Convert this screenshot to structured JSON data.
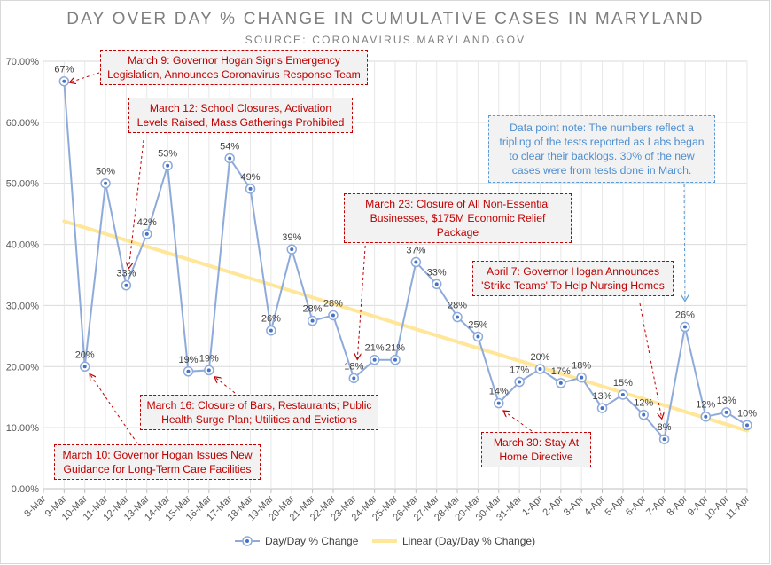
{
  "chart_data": {
    "type": "line",
    "title": "DAY OVER DAY % CHANGE IN CUMULATIVE CASES IN MARYLAND",
    "subtitle": "SOURCE: CORONAVIRUS.MARYLAND.GOV",
    "categories": [
      "8-Mar",
      "9-Mar",
      "10-Mar",
      "11-Mar",
      "12-Mar",
      "13-Mar",
      "14-Mar",
      "15-Mar",
      "16-Mar",
      "17-Mar",
      "18-Mar",
      "19-Mar",
      "20-Mar",
      "21-Mar",
      "22-Mar",
      "23-Mar",
      "24-Mar",
      "25-Mar",
      "26-Mar",
      "27-Mar",
      "28-Mar",
      "29-Mar",
      "30-Mar",
      "31-Mar",
      "1-Apr",
      "2-Apr",
      "3-Apr",
      "4-Apr",
      "5-Apr",
      "6-Apr",
      "7-Apr",
      "8-Apr",
      "9-Apr",
      "10-Apr",
      "11-Apr"
    ],
    "series": [
      {
        "name": "Day/Day % Change",
        "values": [
          null,
          0.667,
          0.2,
          0.5,
          0.333,
          0.417,
          0.529,
          0.192,
          0.194,
          0.541,
          0.491,
          0.259,
          0.392,
          0.275,
          0.284,
          0.181,
          0.211,
          0.211,
          0.371,
          0.335,
          0.281,
          0.249,
          0.14,
          0.175,
          0.196,
          0.173,
          0.182,
          0.132,
          0.154,
          0.121,
          0.081,
          0.265,
          0.118,
          0.125,
          0.104
        ],
        "labels": [
          "",
          "67%",
          "20%",
          "50%",
          "33%",
          "42%",
          "53%",
          "19%",
          "19%",
          "54%",
          "49%",
          "26%",
          "39%",
          "28%",
          "28%",
          "18%",
          "21%",
          "21%",
          "37%",
          "33%",
          "28%",
          "25%",
          "14%",
          "17%",
          "20%",
          "17%",
          "18%",
          "13%",
          "15%",
          "12%",
          "8%",
          "26%",
          "12%",
          "13%",
          "10%"
        ],
        "color": "#8eaadb"
      },
      {
        "name": "Linear (Day/Day % Change)",
        "type": "trendline",
        "start": 0.438,
        "end": 0.095,
        "color": "#ffe699"
      }
    ],
    "yticks": [
      0,
      0.1,
      0.2,
      0.3,
      0.4,
      0.5,
      0.6,
      0.7
    ],
    "ytick_labels": [
      "0.00%",
      "10.00%",
      "20.00%",
      "30.00%",
      "40.00%",
      "50.00%",
      "60.00%",
      "70.00%"
    ],
    "ylim": [
      0,
      0.7
    ],
    "xlabel": "",
    "ylabel": "",
    "grid": true,
    "legend_position": "bottom"
  },
  "annotations": [
    {
      "text": "March 9: Governor Hogan Signs Emergency Legislation, Announces Coronavirus Response Team",
      "style": "red",
      "target": "9-Mar"
    },
    {
      "text": "March 12: School Closures, Activation Levels Raised, Mass Gatherings Prohibited",
      "style": "red",
      "target": "12-Mar"
    },
    {
      "text": "March 10: Governor Hogan Issues New Guidance for Long-Term Care Facilities",
      "style": "red",
      "target": "10-Mar"
    },
    {
      "text": "March 16: Closure of Bars, Restaurants; Public Health Surge Plan; Utilities and Evictions",
      "style": "red",
      "target": "16-Mar"
    },
    {
      "text": "March 23: Closure of All Non-Essential Businesses, $175M Economic Relief Package",
      "style": "red",
      "target": "23-Mar"
    },
    {
      "text": "March 30: Stay At Home Directive",
      "style": "red",
      "target": "30-Mar"
    },
    {
      "text": "April 7: Governor Hogan Announces 'Strike Teams' To Help Nursing Homes",
      "style": "red",
      "target": "7-Apr"
    },
    {
      "text": "Data point note: The numbers reflect a tripling of the tests reported as Labs began to clear their backlogs. 30% of the new cases were from tests done in March.",
      "style": "blue",
      "target": "8-Apr"
    }
  ],
  "legend": {
    "series_label": "Day/Day % Change",
    "trend_label": "Linear (Day/Day % Change)"
  },
  "colors": {
    "series": "#8eaadb",
    "marker_center": "#4472c4",
    "trend": "#ffe699",
    "annotation_red": "#c00000",
    "annotation_blue": "#5b9bd5",
    "grid": "#d9d9d9",
    "text": "#595959"
  }
}
